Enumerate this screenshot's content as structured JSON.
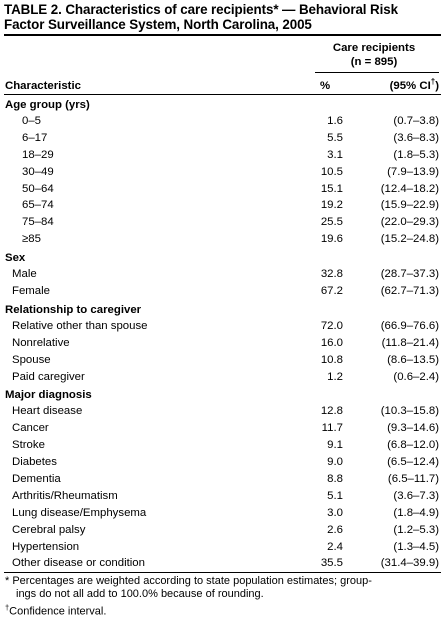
{
  "title": "TABLE 2.  Characteristics of care recipients* — Behavioral Risk Factor Surveillance System, North Carolina, 2005",
  "header": {
    "group_label": "Care recipients",
    "group_n": "(n = 895)",
    "characteristic": "Characteristic",
    "percent": "%",
    "ci": "(95% CI",
    "ci_dagger": "†",
    "ci_close": ")"
  },
  "sections": [
    {
      "title": "Age group (yrs)",
      "rows": [
        {
          "label": "0–5",
          "pct": "1.6",
          "ci": "(0.7–3.8)"
        },
        {
          "label": "6–17",
          "pct": "5.5",
          "ci": "(3.6–8.3)"
        },
        {
          "label": "18–29",
          "pct": "3.1",
          "ci": "(1.8–5.3)"
        },
        {
          "label": "30–49",
          "pct": "10.5",
          "ci": "(7.9–13.9)"
        },
        {
          "label": "50–64",
          "pct": "15.1",
          "ci": "(12.4–18.2)"
        },
        {
          "label": "65–74",
          "pct": "19.2",
          "ci": "(15.9–22.9)"
        },
        {
          "label": "75–84",
          "pct": "25.5",
          "ci": "(22.0–29.3)"
        },
        {
          "label": "≥85",
          "pct": "19.6",
          "ci": "(15.2–24.8)"
        }
      ]
    },
    {
      "title": "Sex",
      "rows": [
        {
          "label": "Male",
          "pct": "32.8",
          "ci": "(28.7–37.3)"
        },
        {
          "label": "Female",
          "pct": "67.2",
          "ci": "(62.7–71.3)"
        }
      ]
    },
    {
      "title": "Relationship to caregiver",
      "rows": [
        {
          "label": "Relative other than spouse",
          "pct": "72.0",
          "ci": "(66.9–76.6)"
        },
        {
          "label": "Nonrelative",
          "pct": "16.0",
          "ci": "(11.8–21.4)"
        },
        {
          "label": "Spouse",
          "pct": "10.8",
          "ci": "(8.6–13.5)"
        },
        {
          "label": "Paid caregiver",
          "pct": "1.2",
          "ci": "(0.6–2.4)"
        }
      ]
    },
    {
      "title": "Major diagnosis",
      "rows": [
        {
          "label": "Heart disease",
          "pct": "12.8",
          "ci": "(10.3–15.8)"
        },
        {
          "label": "Cancer",
          "pct": "11.7",
          "ci": "(9.3–14.6)"
        },
        {
          "label": "Stroke",
          "pct": "9.1",
          "ci": "(6.8–12.0)"
        },
        {
          "label": "Diabetes",
          "pct": "9.0",
          "ci": "(6.5–12.4)"
        },
        {
          "label": "Dementia",
          "pct": "8.8",
          "ci": "(6.5–11.7)"
        },
        {
          "label": "Arthritis/Rheumatism",
          "pct": "5.1",
          "ci": "(3.6–7.3)"
        },
        {
          "label": "Lung disease/Emphysema",
          "pct": "3.0",
          "ci": "(1.8–4.9)"
        },
        {
          "label": "Cerebral palsy",
          "pct": "2.6",
          "ci": "(1.2–5.3)"
        },
        {
          "label": "Hypertension",
          "pct": "2.4",
          "ci": "(1.3–4.5)"
        },
        {
          "label": "Other disease or condition",
          "pct": "35.5",
          "ci": "(31.4–39.9)"
        }
      ]
    }
  ],
  "footnotes": {
    "star_line1": "* Percentages are weighted according to state population estimates; group-",
    "star_line2": "ings do not all add to 100.0% because of rounding.",
    "dagger_mark": "†",
    "dagger_text": "Confidence interval."
  }
}
